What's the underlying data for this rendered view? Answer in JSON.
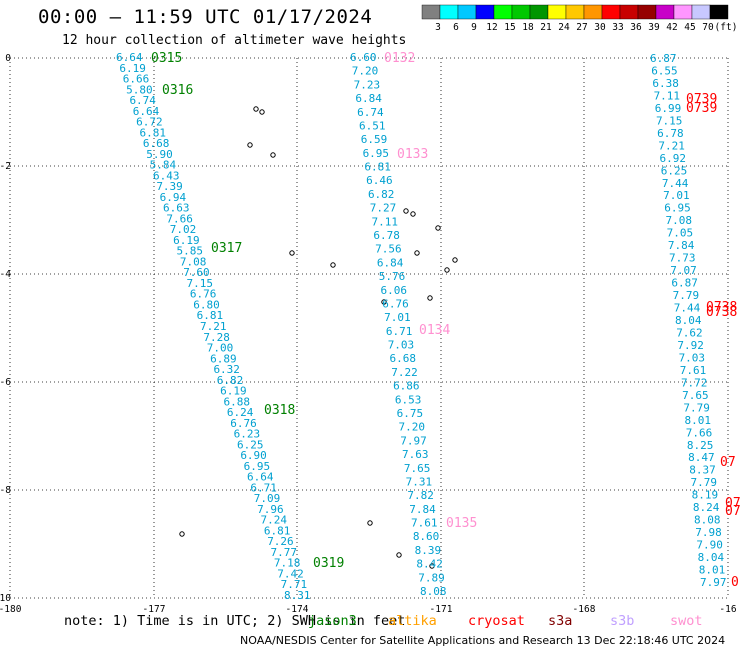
{
  "header": {
    "title": "00:00 – 11:59 UTC 01/17/2024",
    "subtitle": "12 hour collection of altimeter wave heights"
  },
  "colorbar": {
    "colors": [
      "#808080",
      "#00ffff",
      "#00c8ff",
      "#0000ff",
      "#00ff00",
      "#00c800",
      "#009600",
      "#ffff00",
      "#ffc800",
      "#ff9600",
      "#ff0000",
      "#c80000",
      "#960000",
      "#c800c8",
      "#ff96ff",
      "#c8c8ff",
      "#000000"
    ],
    "labels": [
      "3",
      "6",
      "9",
      "12",
      "15",
      "18",
      "21",
      "24",
      "27",
      "30",
      "33",
      "36",
      "39",
      "42",
      "45",
      "70",
      "(ft)"
    ]
  },
  "axes": {
    "x_ticks": [
      "-180",
      "-177",
      "-174",
      "-171",
      "-168",
      "-16"
    ],
    "y_ticks": [
      "0",
      "-2",
      "-4",
      "-6",
      "-8",
      "-10"
    ]
  },
  "tracks": [
    {
      "name": "jason3",
      "color": "#00a0d0",
      "values": [
        "6.64",
        "6.19",
        "6.66",
        "5.80",
        "6.74",
        "6.64",
        "6.72",
        "6.81",
        "6.68",
        "5.90",
        "5.84",
        "6.43",
        "7.39",
        "6.94",
        "6.63",
        "7.66",
        "7.02",
        "6.19",
        "5.85",
        "7.08",
        "7.60",
        "7.15",
        "6.76",
        "6.80",
        "6.81",
        "7.21",
        "7.28",
        "7.00",
        "6.89",
        "6.32",
        "6.82",
        "6.19",
        "6.88",
        "6.24",
        "6.76",
        "6.23",
        "6.25",
        "6.90",
        "6.95",
        "6.64",
        "6.71",
        "7.09",
        "7.96",
        "7.24",
        "6.81",
        "7.26",
        "7.77",
        "7.18",
        "7.42",
        "7.71",
        "8.31"
      ]
    },
    {
      "name": "altika",
      "color": "#00a0d0",
      "values": [
        "6.60",
        "7.20",
        "7.23",
        "6.84",
        "6.74",
        "6.51",
        "6.59",
        "6.95",
        "6.81",
        "6.46",
        "6.82",
        "7.27",
        "7.11",
        "6.78",
        "7.56",
        "6.84",
        "5.76",
        "6.06",
        "6.76",
        "7.01",
        "6.71",
        "7.03",
        "6.68",
        "7.22",
        "6.86",
        "6.53",
        "6.75",
        "7.20",
        "7.97",
        "7.63",
        "7.65",
        "7.31",
        "7.82",
        "7.84",
        "7.61",
        "8.60",
        "8.39",
        "8.42",
        "7.89",
        "8.08"
      ]
    },
    {
      "name": "cryosat",
      "color": "#00a0d0",
      "values": [
        "6.87",
        "6.55",
        "6.38",
        "7.11",
        "6.99",
        "7.15",
        "6.78",
        "7.21",
        "6.92",
        "6.25",
        "7.44",
        "7.01",
        "6.95",
        "7.08",
        "7.05",
        "7.84",
        "7.73",
        "7.07",
        "6.87",
        "7.79",
        "7.44",
        "8.04",
        "7.62",
        "7.92",
        "7.03",
        "7.61",
        "7.72",
        "7.65",
        "7.79",
        "8.01",
        "7.66",
        "8.25",
        "8.47",
        "8.37",
        "7.79",
        "8.19",
        "8.24",
        "8.08",
        "7.98",
        "7.90",
        "8.04",
        "8.01",
        "7.97"
      ]
    }
  ],
  "time_labels": [
    {
      "text": "0315",
      "color": "#008000"
    },
    {
      "text": "0316",
      "color": "#008000"
    },
    {
      "text": "0317",
      "color": "#008000"
    },
    {
      "text": "0318",
      "color": "#008000"
    },
    {
      "text": "0319",
      "color": "#008000"
    },
    {
      "text": "0132",
      "color": "#ff90d0"
    },
    {
      "text": "0133",
      "color": "#ff90d0"
    },
    {
      "text": "0134",
      "color": "#ff90d0"
    },
    {
      "text": "0135",
      "color": "#ff90d0"
    },
    {
      "text": "0739",
      "color": "#ff0000"
    },
    {
      "text": "0739",
      "color": "#ff0000"
    },
    {
      "text": "0738",
      "color": "#ff0000"
    },
    {
      "text": "0738",
      "color": "#ff0000"
    },
    {
      "text": "07",
      "color": "#ff0000"
    },
    {
      "text": "07",
      "color": "#ff0000"
    },
    {
      "text": "07",
      "color": "#ff0000"
    },
    {
      "text": "0",
      "color": "#ff0000"
    }
  ],
  "note": {
    "text": "note:  1) Time is in UTC; 2) SWH is in feet",
    "satellites": [
      {
        "name": "jason3",
        "color": "#008000"
      },
      {
        "name": "altika",
        "color": "#ffa000"
      },
      {
        "name": "cryosat",
        "color": "#ff0000"
      },
      {
        "name": "s3a",
        "color": "#800000"
      },
      {
        "name": "s3b",
        "color": "#c0a0ff"
      },
      {
        "name": "swot",
        "color": "#ff90d0"
      }
    ]
  },
  "footer": {
    "text": "NOAA/NESDIS Center for Satellite Applications and Research    13 Dec 22:18:46 UTC 2024"
  }
}
